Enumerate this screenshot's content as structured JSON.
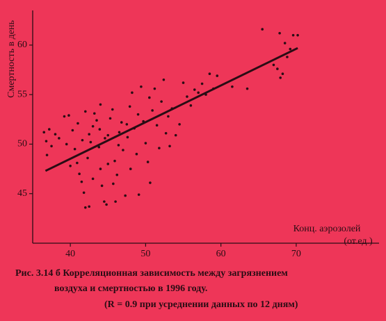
{
  "chart_data": {
    "type": "scatter",
    "ylabel": "Смертность в день",
    "xlabel": "Конц. аэрозолей",
    "xlabel_unit": "(от.ед.)",
    "caption": [
      "Рис. 3.14 б Корреляционная зависимость между загрязнением",
      "воздуха и смертностью в 1996 году.",
      "(R = 0.9 при усреднении данных по 12 дням)"
    ],
    "xlim": [
      35,
      81
    ],
    "ylim": [
      40,
      63.5
    ],
    "xticks": [
      40,
      50,
      60,
      70
    ],
    "yticks": [
      45,
      50,
      55,
      60
    ],
    "color": "#2a0c14",
    "x": [
      36.5,
      36.8,
      37.2,
      37.5,
      38.0,
      36.9,
      38.5,
      39.2,
      39.8,
      40.3,
      40.6,
      40.9,
      41.2,
      41.5,
      41.8,
      42.0,
      42.5,
      42.3,
      42.7,
      43.0,
      43.2,
      43.5,
      43.8,
      44.0,
      44.2,
      44.5,
      44.8,
      45.0,
      45.3,
      45.6,
      45.9,
      46.2,
      46.5,
      46.8,
      47.0,
      47.3,
      47.6,
      47.9,
      48.2,
      48.5,
      48.8,
      49.1,
      49.4,
      49.7,
      50.0,
      50.3,
      50.6,
      50.9,
      51.2,
      51.5,
      51.8,
      52.1,
      52.4,
      52.7,
      53.0,
      53.5,
      54.0,
      54.5,
      55.0,
      55.5,
      56.0,
      56.5,
      57.0,
      57.5,
      58.0,
      58.5,
      59.0,
      59.5,
      61.5,
      63.5,
      65.5,
      67.0,
      67.5,
      67.8,
      68.2,
      68.5,
      68.8,
      69.2,
      69.6,
      70.2,
      67.9,
      41.0,
      42.0,
      44.0,
      45.0,
      43.0,
      46.0,
      48.0,
      39.5,
      40.0,
      42.5,
      47.5,
      50.5,
      53.2,
      49.0,
      44.6,
      46.4,
      43.9,
      41.6,
      45.7
    ],
    "y": [
      51.2,
      50.3,
      51.5,
      49.8,
      51.0,
      48.9,
      50.6,
      52.8,
      52.9,
      51.4,
      49.5,
      48.1,
      47.0,
      46.2,
      45.1,
      43.6,
      43.7,
      48.6,
      50.2,
      51.8,
      53.1,
      52.4,
      49.7,
      47.5,
      45.8,
      44.2,
      43.9,
      50.9,
      52.6,
      53.5,
      48.3,
      46.9,
      51.2,
      52.2,
      49.4,
      44.8,
      50.7,
      53.8,
      55.2,
      51.6,
      49.0,
      44.9,
      55.8,
      52.3,
      50.1,
      48.2,
      46.1,
      53.4,
      55.6,
      51.9,
      49.6,
      54.3,
      56.5,
      51.1,
      52.8,
      53.6,
      50.9,
      52.0,
      56.2,
      54.8,
      53.9,
      55.5,
      55.2,
      56.1,
      55.0,
      57.1,
      55.6,
      56.9,
      55.8,
      55.6,
      61.6,
      58.0,
      57.6,
      61.2,
      57.1,
      60.2,
      58.8,
      59.6,
      61.0,
      61.0,
      56.7,
      52.1,
      53.3,
      54.0,
      48.0,
      46.5,
      44.2,
      47.5,
      50.0,
      47.8,
      51.0,
      52.0,
      54.7,
      49.8,
      53.0,
      50.6,
      49.9,
      51.5,
      50.4,
      46.0
    ],
    "trend_line": {
      "x": [
        36.7,
        70.2
      ],
      "y": [
        47.3,
        59.7
      ]
    }
  }
}
